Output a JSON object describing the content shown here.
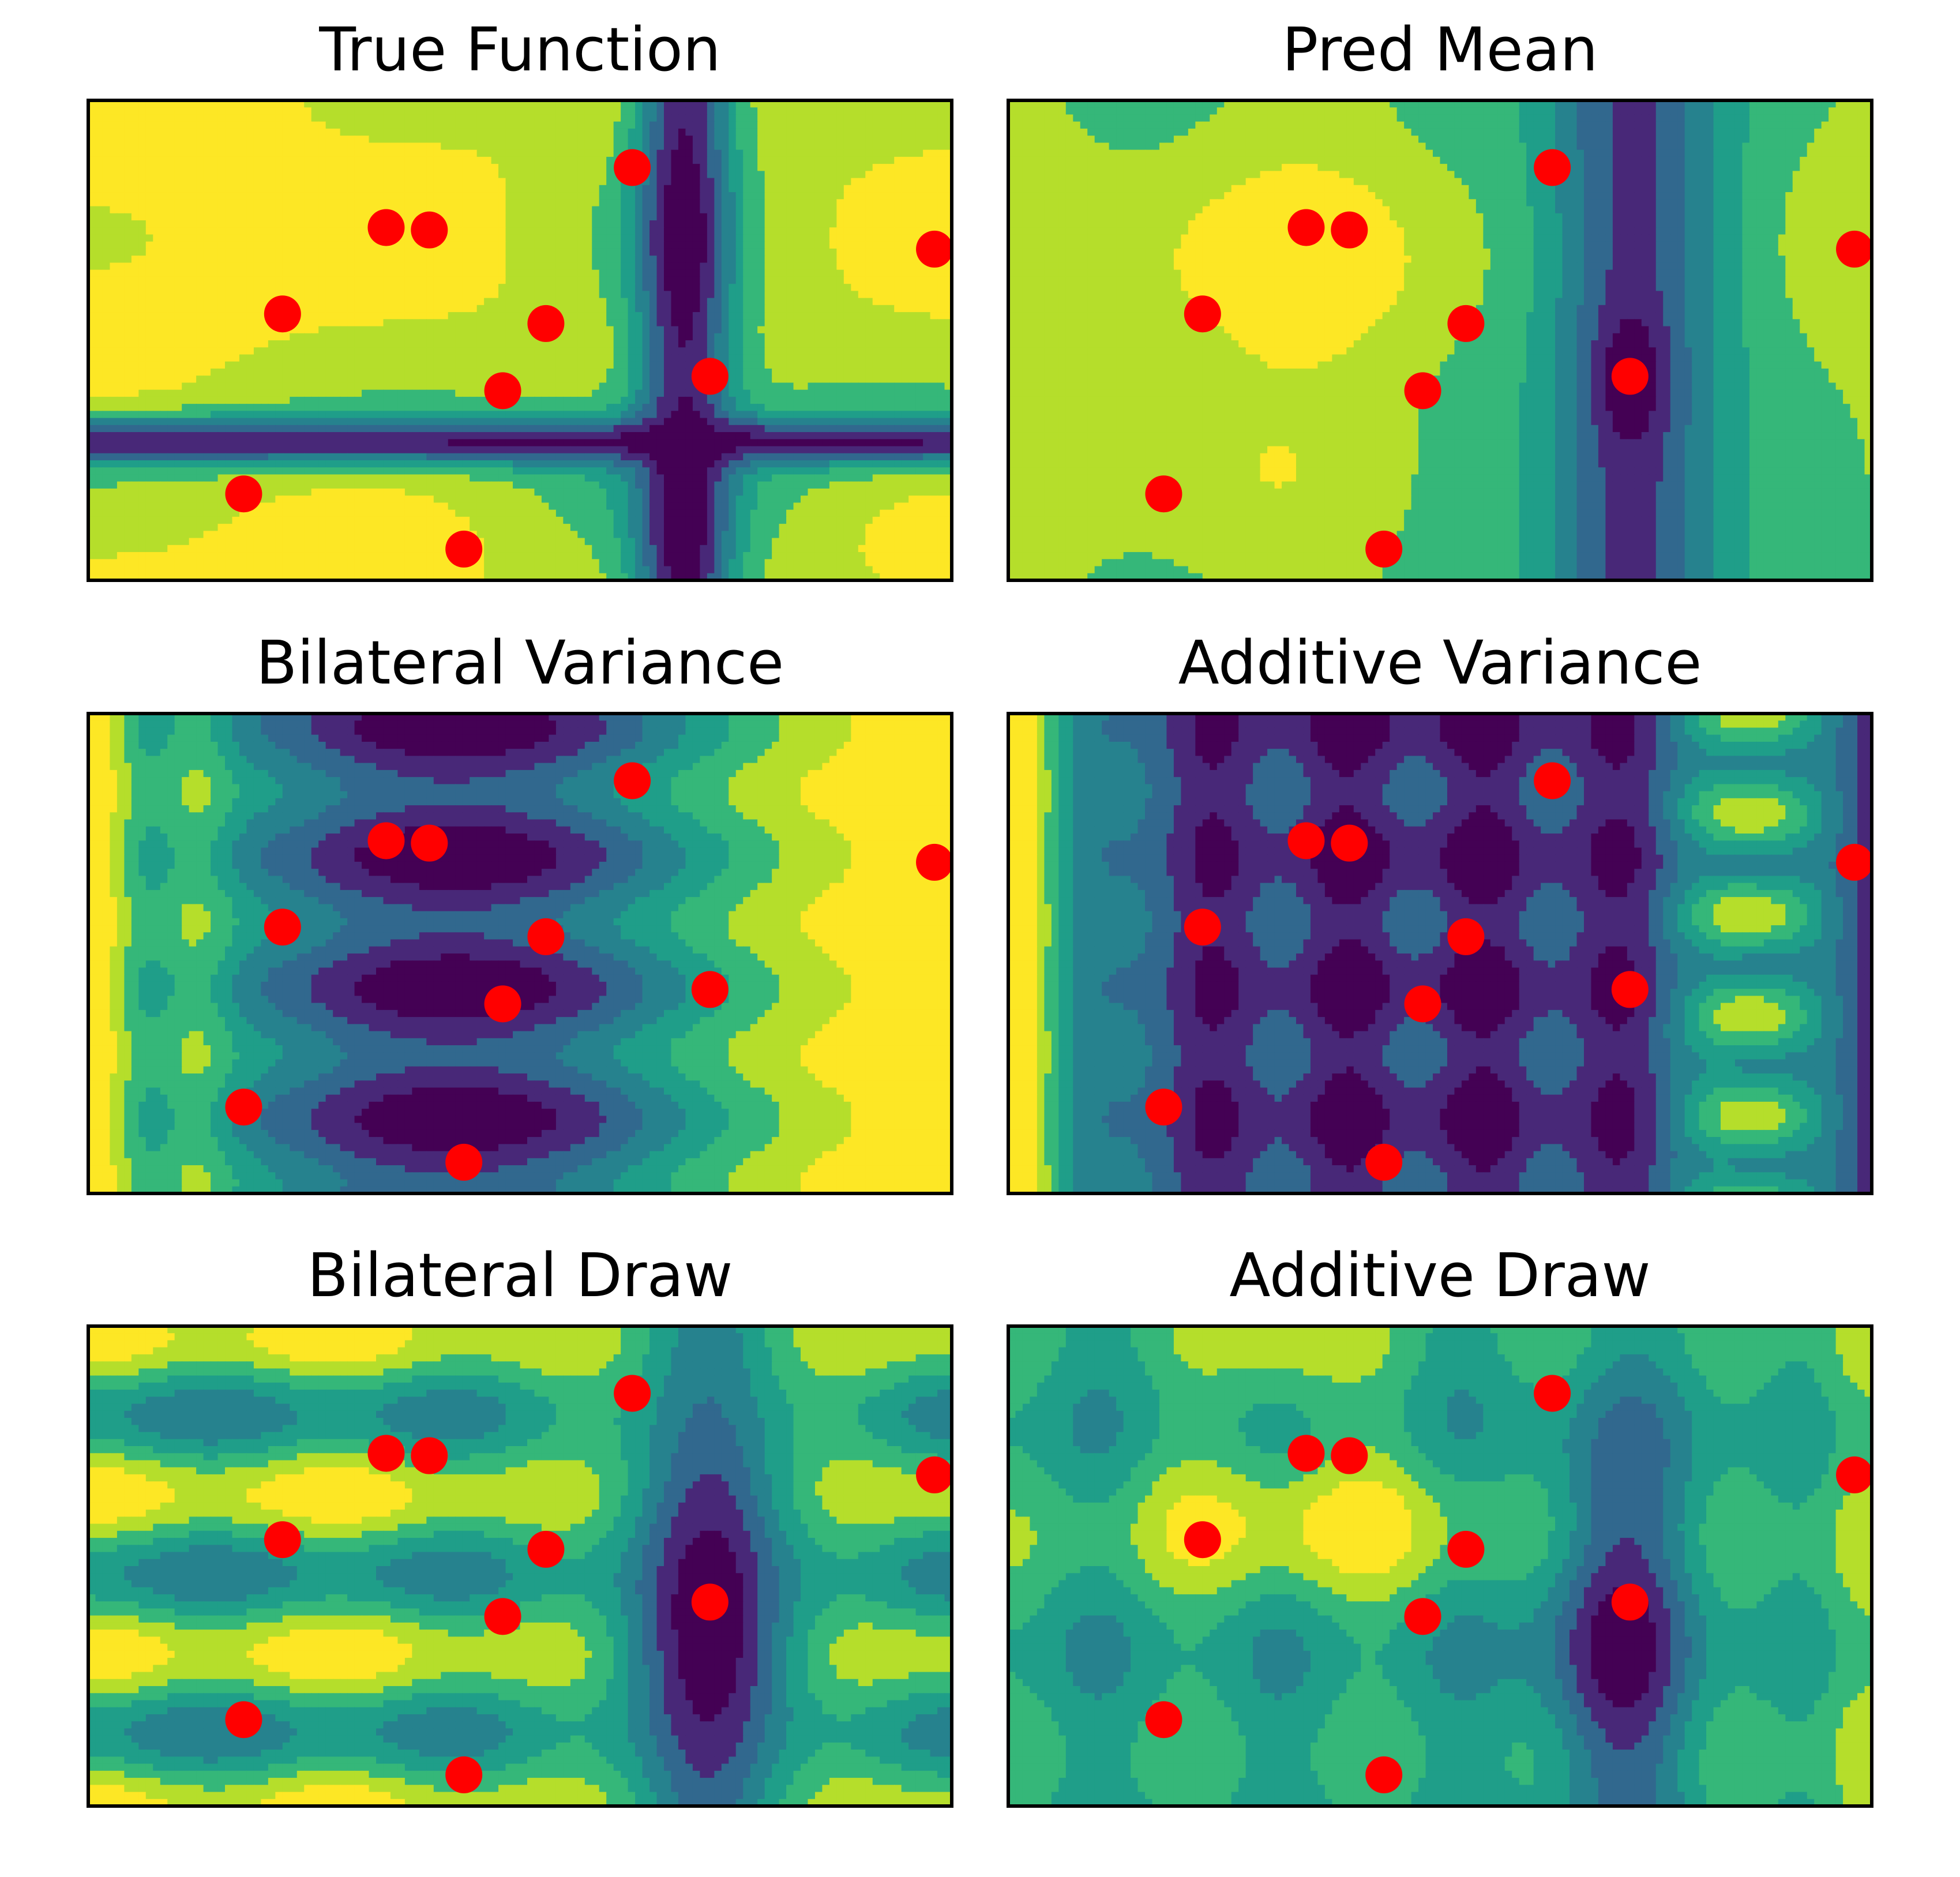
{
  "figure": {
    "layout": "3 rows x 2 columns of filled contour plots with observation points"
  },
  "colors": {
    "point": "#ff0000",
    "frame": "#000000",
    "viridis": [
      "#440154",
      "#482878",
      "#3e4989",
      "#31688e",
      "#26828e",
      "#1f9e89",
      "#35b779",
      "#6ece58",
      "#b5de2b",
      "#fde725"
    ]
  },
  "chart_data": [
    {
      "type": "contour",
      "title": "True Function",
      "xlim": [
        0,
        1
      ],
      "ylim": [
        0,
        1
      ],
      "ticks": "none",
      "levels": 8,
      "field": "true",
      "points": [
        [
          0.63,
          0.14
        ],
        [
          0.345,
          0.265
        ],
        [
          0.395,
          0.27
        ],
        [
          0.98,
          0.31
        ],
        [
          0.225,
          0.445
        ],
        [
          0.53,
          0.465
        ],
        [
          0.72,
          0.575
        ],
        [
          0.48,
          0.605
        ],
        [
          0.18,
          0.82
        ],
        [
          0.435,
          0.935
        ]
      ]
    },
    {
      "type": "contour",
      "title": "Pred Mean",
      "xlim": [
        0,
        1
      ],
      "ylim": [
        0,
        1
      ],
      "ticks": "none",
      "levels": 8,
      "field": "mean",
      "points": [
        [
          0.63,
          0.14
        ],
        [
          0.345,
          0.265
        ],
        [
          0.395,
          0.27
        ],
        [
          0.98,
          0.31
        ],
        [
          0.225,
          0.445
        ],
        [
          0.53,
          0.465
        ],
        [
          0.72,
          0.575
        ],
        [
          0.48,
          0.605
        ],
        [
          0.18,
          0.82
        ],
        [
          0.435,
          0.935
        ]
      ]
    },
    {
      "type": "contour",
      "title": "Bilateral Variance",
      "xlim": [
        0,
        1
      ],
      "ylim": [
        0,
        1
      ],
      "ticks": "none",
      "levels": 8,
      "field": "bvar",
      "points": [
        [
          0.63,
          0.14
        ],
        [
          0.345,
          0.265
        ],
        [
          0.395,
          0.27
        ],
        [
          0.98,
          0.31
        ],
        [
          0.225,
          0.445
        ],
        [
          0.53,
          0.465
        ],
        [
          0.72,
          0.575
        ],
        [
          0.48,
          0.605
        ],
        [
          0.18,
          0.82
        ],
        [
          0.435,
          0.935
        ]
      ]
    },
    {
      "type": "contour",
      "title": "Additive Variance",
      "xlim": [
        0,
        1
      ],
      "ylim": [
        0,
        1
      ],
      "ticks": "none",
      "levels": 8,
      "field": "avar",
      "points": [
        [
          0.63,
          0.14
        ],
        [
          0.345,
          0.265
        ],
        [
          0.395,
          0.27
        ],
        [
          0.98,
          0.31
        ],
        [
          0.225,
          0.445
        ],
        [
          0.53,
          0.465
        ],
        [
          0.72,
          0.575
        ],
        [
          0.48,
          0.605
        ],
        [
          0.18,
          0.82
        ],
        [
          0.435,
          0.935
        ]
      ]
    },
    {
      "type": "contour",
      "title": "Bilateral Draw",
      "xlim": [
        0,
        1
      ],
      "ylim": [
        0,
        1
      ],
      "ticks": "none",
      "levels": 8,
      "field": "bdraw",
      "points": [
        [
          0.63,
          0.14
        ],
        [
          0.345,
          0.265
        ],
        [
          0.395,
          0.27
        ],
        [
          0.98,
          0.31
        ],
        [
          0.225,
          0.445
        ],
        [
          0.53,
          0.465
        ],
        [
          0.72,
          0.575
        ],
        [
          0.48,
          0.605
        ],
        [
          0.18,
          0.82
        ],
        [
          0.435,
          0.935
        ]
      ]
    },
    {
      "type": "contour",
      "title": "Additive Draw",
      "xlim": [
        0,
        1
      ],
      "ylim": [
        0,
        1
      ],
      "ticks": "none",
      "levels": 8,
      "field": "adraw",
      "points": [
        [
          0.63,
          0.14
        ],
        [
          0.345,
          0.265
        ],
        [
          0.395,
          0.27
        ],
        [
          0.98,
          0.31
        ],
        [
          0.225,
          0.445
        ],
        [
          0.53,
          0.465
        ],
        [
          0.72,
          0.575
        ],
        [
          0.48,
          0.605
        ],
        [
          0.18,
          0.82
        ],
        [
          0.435,
          0.935
        ]
      ]
    }
  ]
}
